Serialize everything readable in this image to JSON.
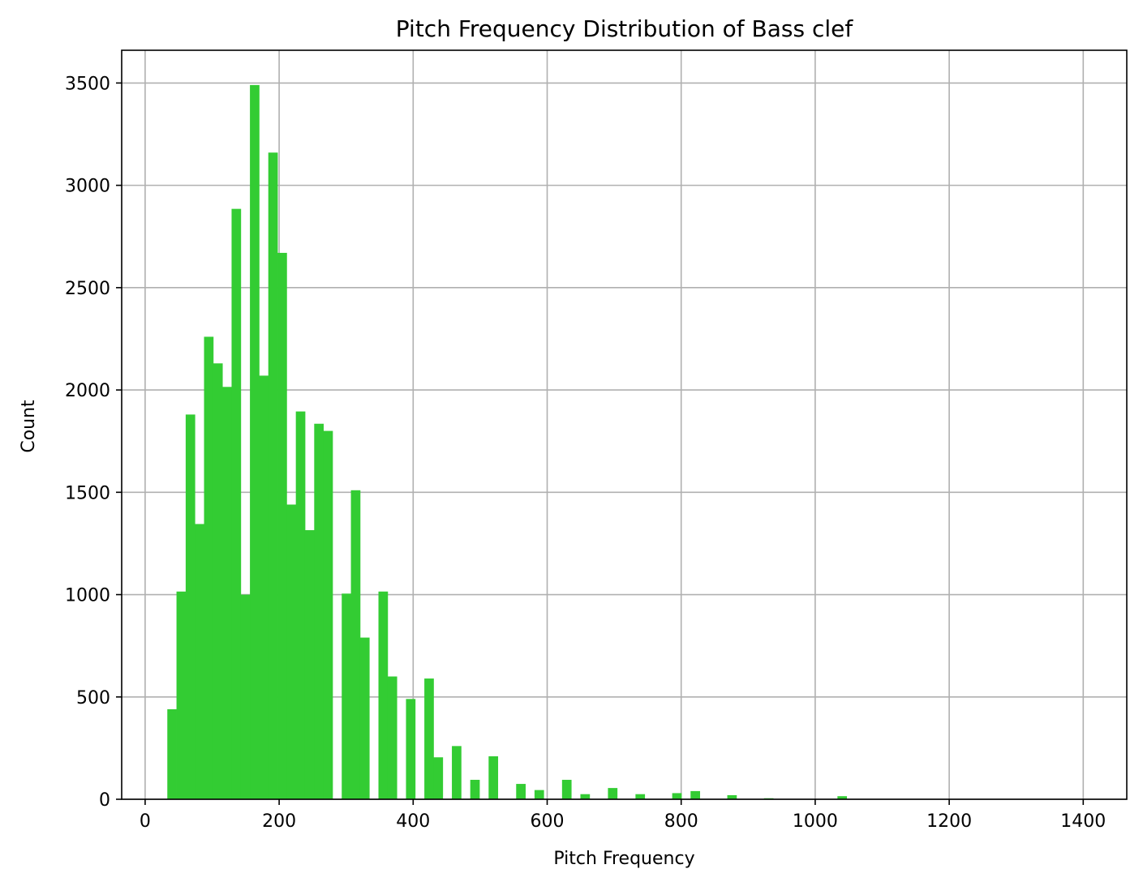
{
  "chart_data": {
    "type": "bar",
    "title": "Pitch Frequency Distribution of Bass clef",
    "xlabel": "Pitch Frequency",
    "ylabel": "Count",
    "xlim": [
      -35,
      1465
    ],
    "ylim": [
      0,
      3660
    ],
    "xticks": [
      0,
      200,
      400,
      600,
      800,
      1000,
      1200,
      1400
    ],
    "xtick_labels": [
      "0",
      "200",
      "400",
      "600",
      "800",
      "1000",
      "1200",
      "1400"
    ],
    "yticks": [
      0,
      500,
      1000,
      1500,
      2000,
      2500,
      3000,
      3500
    ],
    "ytick_labels": [
      "0",
      "500",
      "1000",
      "1500",
      "2000",
      "2500",
      "3000",
      "3500"
    ],
    "grid": true,
    "bar_color": "#33cc33",
    "bin_width": 13.7,
    "bins": [
      {
        "x": 33.1,
        "count": 440
      },
      {
        "x": 46.8,
        "count": 1015
      },
      {
        "x": 60.5,
        "count": 1880
      },
      {
        "x": 74.2,
        "count": 1345
      },
      {
        "x": 87.9,
        "count": 2260
      },
      {
        "x": 101.6,
        "count": 2130
      },
      {
        "x": 115.3,
        "count": 2015
      },
      {
        "x": 129.0,
        "count": 2885
      },
      {
        "x": 142.7,
        "count": 1000
      },
      {
        "x": 156.4,
        "count": 3490
      },
      {
        "x": 170.1,
        "count": 2070
      },
      {
        "x": 183.8,
        "count": 3160
      },
      {
        "x": 197.5,
        "count": 2670
      },
      {
        "x": 211.2,
        "count": 1440
      },
      {
        "x": 224.9,
        "count": 1895
      },
      {
        "x": 238.6,
        "count": 1315
      },
      {
        "x": 252.3,
        "count": 1835
      },
      {
        "x": 266.0,
        "count": 1800
      },
      {
        "x": 293.4,
        "count": 1005
      },
      {
        "x": 307.1,
        "count": 1510
      },
      {
        "x": 320.8,
        "count": 790
      },
      {
        "x": 348.2,
        "count": 1015
      },
      {
        "x": 361.9,
        "count": 600
      },
      {
        "x": 389.3,
        "count": 490
      },
      {
        "x": 416.7,
        "count": 590
      },
      {
        "x": 430.4,
        "count": 205
      },
      {
        "x": 457.8,
        "count": 260
      },
      {
        "x": 485.2,
        "count": 95
      },
      {
        "x": 512.6,
        "count": 210
      },
      {
        "x": 553.7,
        "count": 75
      },
      {
        "x": 581.1,
        "count": 45
      },
      {
        "x": 622.2,
        "count": 95
      },
      {
        "x": 649.6,
        "count": 25
      },
      {
        "x": 690.7,
        "count": 55
      },
      {
        "x": 731.8,
        "count": 25
      },
      {
        "x": 786.6,
        "count": 30
      },
      {
        "x": 814.0,
        "count": 40
      },
      {
        "x": 868.8,
        "count": 20
      },
      {
        "x": 923.6,
        "count": 5
      },
      {
        "x": 1033.2,
        "count": 15
      }
    ]
  }
}
